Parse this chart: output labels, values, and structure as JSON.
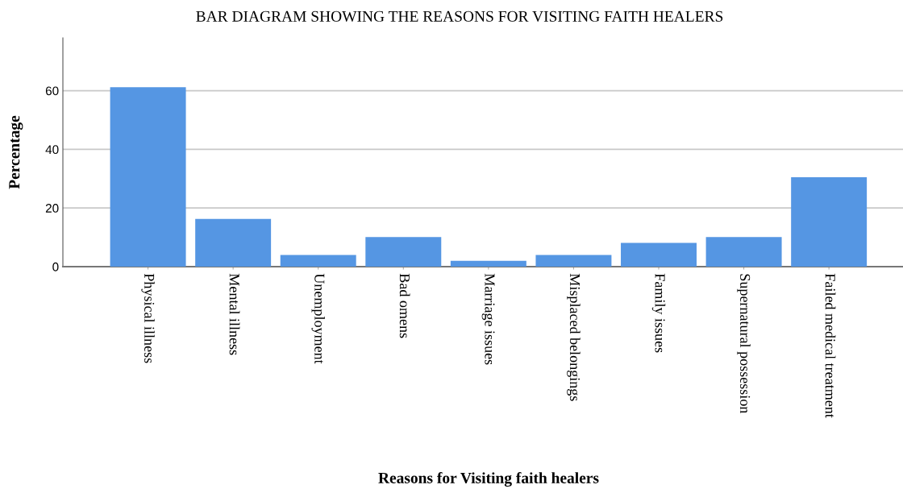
{
  "chart_data": {
    "type": "bar",
    "title": "BAR DIAGRAM SHOWING THE REASONS FOR VISITING FAITH HEALERS",
    "xlabel": "Reasons for Visiting faith healers",
    "ylabel": "Percentage",
    "categories": [
      "Physical illness",
      "Mental illness",
      "Unemployment",
      "Bad omens",
      "Marriage issues",
      "Misplaced belongings",
      "Family issues",
      "Supernatural possession",
      "Failed medical treatment"
    ],
    "values": [
      61.2,
      16.3,
      4.0,
      10.1,
      2.0,
      4.0,
      8.1,
      10.1,
      30.5
    ],
    "color": "#5596e3",
    "ylim": [
      0,
      78
    ],
    "yticks": [
      0,
      20,
      40,
      60
    ],
    "grid": "y"
  }
}
